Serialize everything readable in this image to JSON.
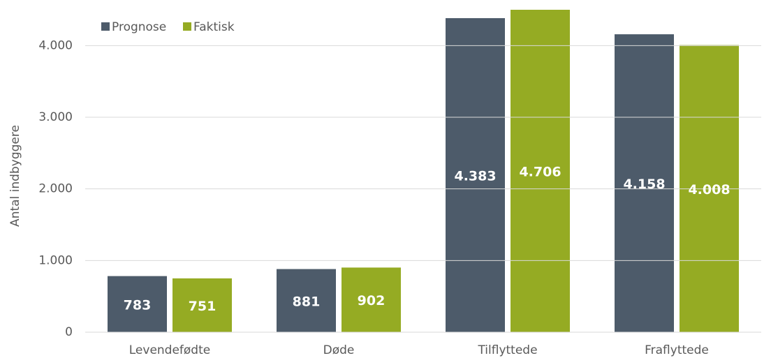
{
  "chart_data": {
    "type": "bar",
    "y_label": "Antal indbyggere",
    "categories": [
      "Levendefødte",
      "Døde",
      "Tilflyttede",
      "Fraflyttede"
    ],
    "series": [
      {
        "name": "Prognose",
        "color": "#4d5b6a",
        "values": [
          783,
          881,
          4383,
          4158
        ],
        "value_labels": [
          "783",
          "881",
          "4.383",
          "4.158"
        ]
      },
      {
        "name": "Faktisk",
        "color": "#95ab23",
        "values": [
          751,
          902,
          4706,
          4008
        ],
        "value_labels": [
          "751",
          "902",
          "4.706",
          "4.008"
        ]
      }
    ],
    "ylim": [
      0,
      4500
    ],
    "yticks": [
      0,
      {
        "value": 1000,
        "label": "1.000"
      },
      {
        "value": 2000,
        "label": "2.000"
      },
      {
        "value": 3000,
        "label": "3.000"
      },
      {
        "value": 4000,
        "label": "4.000"
      }
    ],
    "grid": true,
    "legend": "top-left"
  }
}
